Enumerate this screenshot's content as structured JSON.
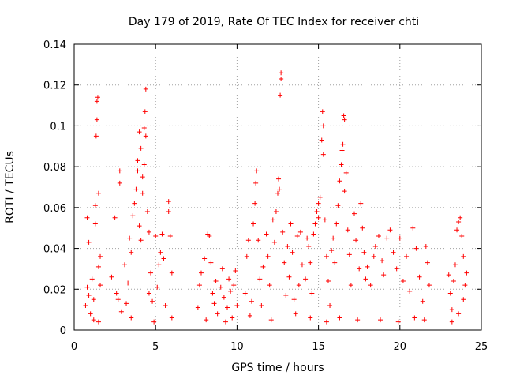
{
  "chart_data": {
    "type": "scatter",
    "title": "Day 179 of 2019, Rate Of TEC Index for receiver chti",
    "xlabel": "GPS time / hours",
    "ylabel": "ROTI / TECUs",
    "xlim": [
      0,
      25
    ],
    "ylim": [
      0,
      0.14
    ],
    "x_ticks": [
      0,
      5,
      10,
      15,
      20,
      25
    ],
    "x_tick_labels": [
      "0",
      "5",
      "10",
      "15",
      "20",
      "25"
    ],
    "y_ticks": [
      0,
      0.02,
      0.04,
      0.06,
      0.08,
      0.1,
      0.12,
      0.14
    ],
    "y_tick_labels": [
      "0",
      "0.02",
      "0.04",
      "0.06",
      "0.08",
      "0.1",
      "0.12",
      "0.14"
    ],
    "grid": true,
    "marker": "+",
    "color": "#ff0000",
    "series": [
      {
        "name": "ROTI",
        "points": [
          [
            0.7,
            0.012
          ],
          [
            0.8,
            0.021
          ],
          [
            0.8,
            0.055
          ],
          [
            0.9,
            0.043
          ],
          [
            0.9,
            0.017
          ],
          [
            1.0,
            0.008
          ],
          [
            1.1,
            0.025
          ],
          [
            1.2,
            0.015
          ],
          [
            1.3,
            0.061
          ],
          [
            1.3,
            0.052
          ],
          [
            1.35,
            0.095
          ],
          [
            1.4,
            0.112
          ],
          [
            1.4,
            0.103
          ],
          [
            1.45,
            0.114
          ],
          [
            1.5,
            0.067
          ],
          [
            1.5,
            0.031
          ],
          [
            1.6,
            0.022
          ],
          [
            1.6,
            0.036
          ],
          [
            1.2,
            0.005
          ],
          [
            1.5,
            0.004
          ],
          [
            2.3,
            0.026
          ],
          [
            2.5,
            0.055
          ],
          [
            2.6,
            0.018
          ],
          [
            2.8,
            0.078
          ],
          [
            2.8,
            0.072
          ],
          [
            2.9,
            0.009
          ],
          [
            3.1,
            0.032
          ],
          [
            3.3,
            0.023
          ],
          [
            3.4,
            0.045
          ],
          [
            3.5,
            0.038
          ],
          [
            3.5,
            0.006
          ],
          [
            3.6,
            0.056
          ],
          [
            3.7,
            0.062
          ],
          [
            3.8,
            0.069
          ],
          [
            3.9,
            0.083
          ],
          [
            3.9,
            0.078
          ],
          [
            4.0,
            0.097
          ],
          [
            4.0,
            0.051
          ],
          [
            4.1,
            0.044
          ],
          [
            4.1,
            0.089
          ],
          [
            4.2,
            0.075
          ],
          [
            4.2,
            0.067
          ],
          [
            4.3,
            0.099
          ],
          [
            4.3,
            0.081
          ],
          [
            4.35,
            0.107
          ],
          [
            4.4,
            0.118
          ],
          [
            4.4,
            0.095
          ],
          [
            4.5,
            0.058
          ],
          [
            4.6,
            0.048
          ],
          [
            4.7,
            0.028
          ],
          [
            4.8,
            0.014
          ],
          [
            4.9,
            0.004
          ],
          [
            5.0,
            0.046
          ],
          [
            5.2,
            0.032
          ],
          [
            5.3,
            0.038
          ],
          [
            5.4,
            0.047
          ],
          [
            5.5,
            0.035
          ],
          [
            5.6,
            0.012
          ],
          [
            5.8,
            0.063
          ],
          [
            5.8,
            0.058
          ],
          [
            5.9,
            0.046
          ],
          [
            6.0,
            0.006
          ],
          [
            6.0,
            0.028
          ],
          [
            5.1,
            0.021
          ],
          [
            4.6,
            0.018
          ],
          [
            3.2,
            0.013
          ],
          [
            2.7,
            0.015
          ],
          [
            7.6,
            0.011
          ],
          [
            7.7,
            0.022
          ],
          [
            7.8,
            0.028
          ],
          [
            8.0,
            0.035
          ],
          [
            8.2,
            0.047
          ],
          [
            8.3,
            0.046
          ],
          [
            8.4,
            0.033
          ],
          [
            8.5,
            0.018
          ],
          [
            8.6,
            0.013
          ],
          [
            8.7,
            0.024
          ],
          [
            8.8,
            0.008
          ],
          [
            9.0,
            0.021
          ],
          [
            9.1,
            0.03
          ],
          [
            9.2,
            0.016
          ],
          [
            9.4,
            0.011
          ],
          [
            9.5,
            0.025
          ],
          [
            9.6,
            0.019
          ],
          [
            9.8,
            0.022
          ],
          [
            9.9,
            0.029
          ],
          [
            10.0,
            0.012
          ],
          [
            8.1,
            0.005
          ],
          [
            9.3,
            0.004
          ],
          [
            9.7,
            0.006
          ],
          [
            10.5,
            0.018
          ],
          [
            10.6,
            0.036
          ],
          [
            10.7,
            0.044
          ],
          [
            10.9,
            0.014
          ],
          [
            11.0,
            0.052
          ],
          [
            11.1,
            0.062
          ],
          [
            11.15,
            0.072
          ],
          [
            11.2,
            0.078
          ],
          [
            11.3,
            0.044
          ],
          [
            11.4,
            0.025
          ],
          [
            11.5,
            0.012
          ],
          [
            11.6,
            0.031
          ],
          [
            11.8,
            0.047
          ],
          [
            11.9,
            0.036
          ],
          [
            12.0,
            0.022
          ],
          [
            12.2,
            0.054
          ],
          [
            12.3,
            0.043
          ],
          [
            12.4,
            0.058
          ],
          [
            12.5,
            0.067
          ],
          [
            12.55,
            0.074
          ],
          [
            12.6,
            0.069
          ],
          [
            12.65,
            0.115
          ],
          [
            12.7,
            0.126
          ],
          [
            12.7,
            0.123
          ],
          [
            12.8,
            0.048
          ],
          [
            12.9,
            0.033
          ],
          [
            13.0,
            0.017
          ],
          [
            13.1,
            0.041
          ],
          [
            13.2,
            0.026
          ],
          [
            13.3,
            0.052
          ],
          [
            13.4,
            0.038
          ],
          [
            13.5,
            0.015
          ],
          [
            13.7,
            0.046
          ],
          [
            13.9,
            0.048
          ],
          [
            10.8,
            0.007
          ],
          [
            12.1,
            0.005
          ],
          [
            13.6,
            0.008
          ],
          [
            13.8,
            0.022
          ],
          [
            14.0,
            0.032
          ],
          [
            14.2,
            0.025
          ],
          [
            14.3,
            0.045
          ],
          [
            14.4,
            0.041
          ],
          [
            14.5,
            0.033
          ],
          [
            14.6,
            0.018
          ],
          [
            14.7,
            0.047
          ],
          [
            14.8,
            0.052
          ],
          [
            14.9,
            0.058
          ],
          [
            15.0,
            0.062
          ],
          [
            15.0,
            0.055
          ],
          [
            15.1,
            0.065
          ],
          [
            15.2,
            0.093
          ],
          [
            15.25,
            0.107
          ],
          [
            15.3,
            0.1
          ],
          [
            15.3,
            0.086
          ],
          [
            15.4,
            0.054
          ],
          [
            15.5,
            0.036
          ],
          [
            15.6,
            0.024
          ],
          [
            15.7,
            0.012
          ],
          [
            15.8,
            0.039
          ],
          [
            15.9,
            0.045
          ],
          [
            16.0,
            0.033
          ],
          [
            16.1,
            0.052
          ],
          [
            16.2,
            0.061
          ],
          [
            16.3,
            0.073
          ],
          [
            16.4,
            0.081
          ],
          [
            16.45,
            0.088
          ],
          [
            16.5,
            0.091
          ],
          [
            16.55,
            0.105
          ],
          [
            16.6,
            0.103
          ],
          [
            16.6,
            0.068
          ],
          [
            16.7,
            0.077
          ],
          [
            16.8,
            0.049
          ],
          [
            16.9,
            0.037
          ],
          [
            17.0,
            0.022
          ],
          [
            17.2,
            0.057
          ],
          [
            17.3,
            0.044
          ],
          [
            17.5,
            0.03
          ],
          [
            17.6,
            0.062
          ],
          [
            17.7,
            0.05
          ],
          [
            17.8,
            0.038
          ],
          [
            17.9,
            0.025
          ],
          [
            18.0,
            0.031
          ],
          [
            18.2,
            0.022
          ],
          [
            18.4,
            0.036
          ],
          [
            18.5,
            0.041
          ],
          [
            18.7,
            0.046
          ],
          [
            18.9,
            0.034
          ],
          [
            19.0,
            0.027
          ],
          [
            19.2,
            0.045
          ],
          [
            19.4,
            0.049
          ],
          [
            19.6,
            0.038
          ],
          [
            19.8,
            0.03
          ],
          [
            20.0,
            0.045
          ],
          [
            20.2,
            0.024
          ],
          [
            20.4,
            0.036
          ],
          [
            20.6,
            0.019
          ],
          [
            20.8,
            0.05
          ],
          [
            21.0,
            0.04
          ],
          [
            21.2,
            0.026
          ],
          [
            21.4,
            0.014
          ],
          [
            21.6,
            0.041
          ],
          [
            21.7,
            0.033
          ],
          [
            21.8,
            0.022
          ],
          [
            14.5,
            0.006
          ],
          [
            15.5,
            0.004
          ],
          [
            16.3,
            0.006
          ],
          [
            17.4,
            0.005
          ],
          [
            18.8,
            0.005
          ],
          [
            19.9,
            0.004
          ],
          [
            20.9,
            0.006
          ],
          [
            21.5,
            0.005
          ],
          [
            23.0,
            0.027
          ],
          [
            23.1,
            0.018
          ],
          [
            23.2,
            0.01
          ],
          [
            23.3,
            0.024
          ],
          [
            23.4,
            0.032
          ],
          [
            23.5,
            0.049
          ],
          [
            23.6,
            0.053
          ],
          [
            23.7,
            0.055
          ],
          [
            23.8,
            0.046
          ],
          [
            23.9,
            0.036
          ],
          [
            24.0,
            0.022
          ],
          [
            23.6,
            0.008
          ],
          [
            23.9,
            0.015
          ],
          [
            24.1,
            0.028
          ],
          [
            23.2,
            0.004
          ]
        ]
      }
    ]
  }
}
